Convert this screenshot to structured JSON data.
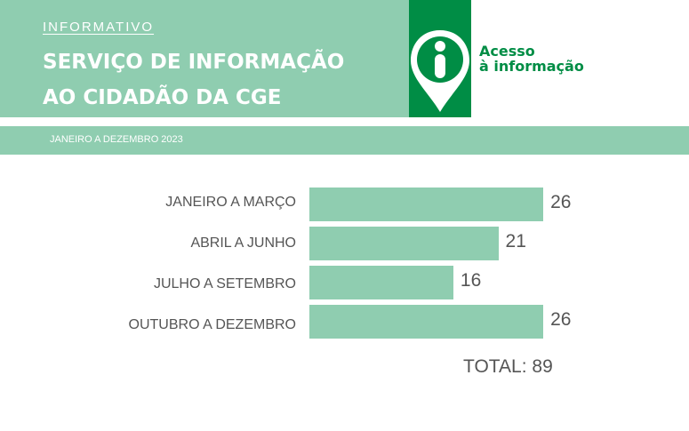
{
  "header": {
    "kicker": "INFORMATIVO",
    "title_line1": "SERVIÇO DE INFORMAÇÃO",
    "title_line2": "AO CIDADÃO DA CGE",
    "logo_line1": "Acesso",
    "logo_line2": "à informação",
    "period": "JANEIRO A DEZEMBRO 2023"
  },
  "colors": {
    "accent": "#8fcdb0",
    "brand": "#008d45",
    "text": "#555555"
  },
  "chart_data": {
    "type": "bar",
    "orientation": "horizontal",
    "categories": [
      "JANEIRO A MARÇO",
      "ABRIL A JUNHO",
      "JULHO A SETEMBRO",
      "OUTUBRO A DEZEMBRO"
    ],
    "values": [
      26,
      21,
      16,
      26
    ],
    "grid": false,
    "total_label": "TOTAL: 89"
  }
}
